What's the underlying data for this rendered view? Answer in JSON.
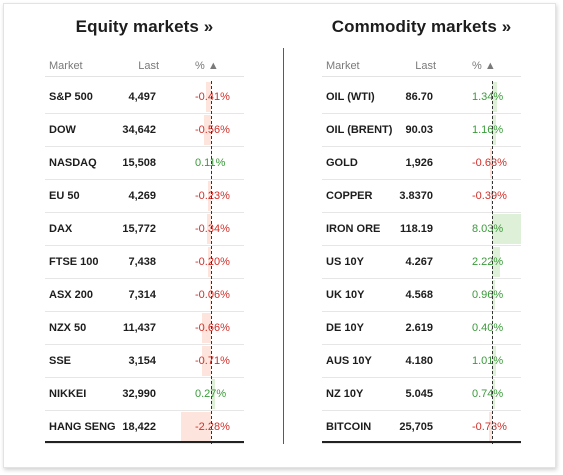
{
  "equity": {
    "title": "Equity markets »",
    "headers": {
      "market": "Market",
      "last": "Last",
      "pct": "% ▲"
    },
    "rows": [
      {
        "name": "S&P 500",
        "last": "4,497",
        "pct": "-0.41%",
        "value": -0.41
      },
      {
        "name": "DOW",
        "last": "34,642",
        "pct": "-0.56%",
        "value": -0.56
      },
      {
        "name": "NASDAQ",
        "last": "15,508",
        "pct": "0.11%",
        "value": 0.11
      },
      {
        "name": "EU 50",
        "last": "4,269",
        "pct": "-0.23%",
        "value": -0.23
      },
      {
        "name": "DAX",
        "last": "15,772",
        "pct": "-0.34%",
        "value": -0.34
      },
      {
        "name": "FTSE 100",
        "last": "7,438",
        "pct": "-0.20%",
        "value": -0.2
      },
      {
        "name": "ASX 200",
        "last": "7,314",
        "pct": "-0.06%",
        "value": -0.06
      },
      {
        "name": "NZX 50",
        "last": "11,437",
        "pct": "-0.66%",
        "value": -0.66
      },
      {
        "name": "SSE",
        "last": "3,154",
        "pct": "-0.71%",
        "value": -0.71
      },
      {
        "name": "NIKKEI",
        "last": "32,990",
        "pct": "0.27%",
        "value": 0.27
      },
      {
        "name": "HANG SENG",
        "last": "18,422",
        "pct": "-2.28%",
        "value": -2.28
      }
    ]
  },
  "commodity": {
    "title": "Commodity markets »",
    "headers": {
      "market": "Market",
      "last": "Last",
      "pct": "% ▲"
    },
    "rows": [
      {
        "name": "OIL (WTI)",
        "last": "86.70",
        "pct": "1.34%",
        "value": 1.34
      },
      {
        "name": "OIL (BRENT)",
        "last": "90.03",
        "pct": "1.16%",
        "value": 1.16
      },
      {
        "name": "GOLD",
        "last": "1,926",
        "pct": "-0.63%",
        "value": -0.63
      },
      {
        "name": "COPPER",
        "last": "3.8370",
        "pct": "-0.39%",
        "value": -0.39
      },
      {
        "name": "IRON ORE",
        "last": "118.19",
        "pct": "8.03%",
        "value": 8.03
      },
      {
        "name": "US 10Y",
        "last": "4.267",
        "pct": "2.22%",
        "value": 2.22
      },
      {
        "name": "UK 10Y",
        "last": "4.568",
        "pct": "0.96%",
        "value": 0.96
      },
      {
        "name": "DE 10Y",
        "last": "2.619",
        "pct": "0.40%",
        "value": 0.4
      },
      {
        "name": "AUS 10Y",
        "last": "4.180",
        "pct": "1.01%",
        "value": 1.01
      },
      {
        "name": "NZ 10Y",
        "last": "5.045",
        "pct": "0.74%",
        "value": 0.74
      },
      {
        "name": "BITCOIN",
        "last": "25,705",
        "pct": "-0.73%",
        "value": -0.73
      }
    ]
  },
  "colors": {
    "negative": "#d0302a",
    "positive": "#3a9a3a",
    "negative_bar": "#fde4dc",
    "positive_bar": "#dff0d8"
  }
}
